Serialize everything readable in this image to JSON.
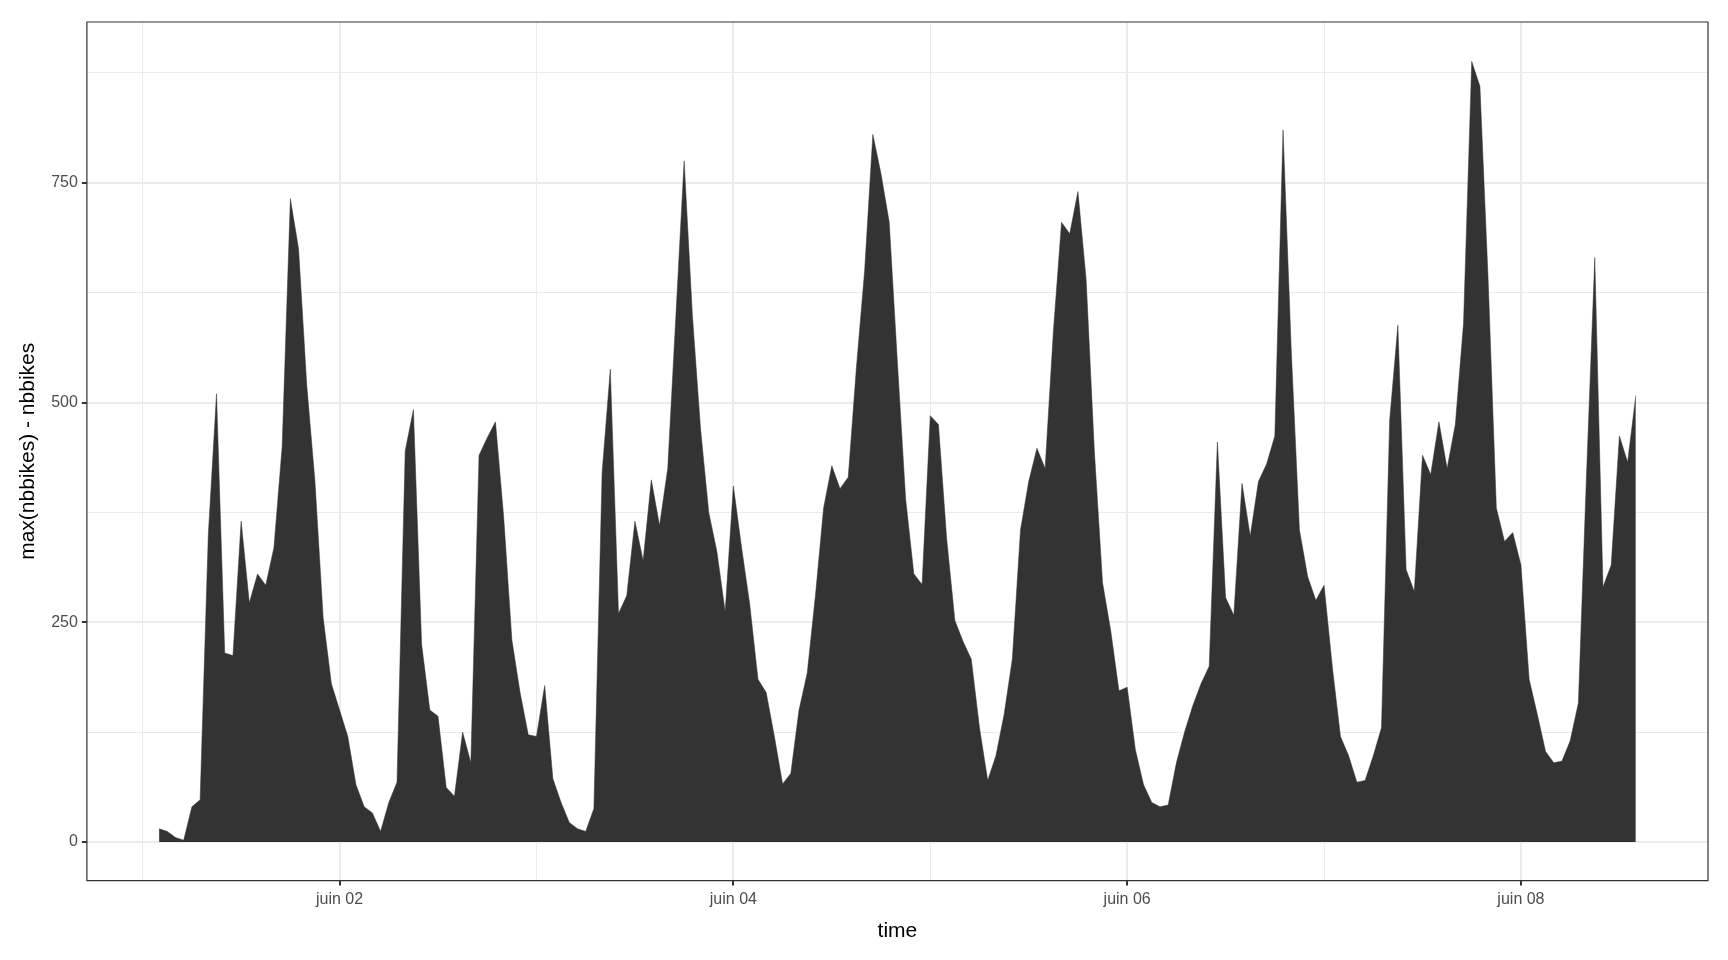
{
  "chart_data": {
    "type": "area",
    "xlabel": "time",
    "ylabel": "max(nbbikes) - nbbikes",
    "xlim": [
      "--05-31T17:12",
      "--06-08T22:48"
    ],
    "xticks": [
      {
        "value": "--06-01",
        "label": null
      },
      {
        "value": "--06-02",
        "label": "juin 02"
      },
      {
        "value": "--06-03",
        "label": null
      },
      {
        "value": "--06-04",
        "label": "juin 04"
      },
      {
        "value": "--06-05",
        "label": null
      },
      {
        "value": "--06-06",
        "label": "juin 06"
      },
      {
        "value": "--06-07",
        "label": null
      },
      {
        "value": "--06-08",
        "label": "juin 08"
      }
    ],
    "ylim": [
      -44,
      933
    ],
    "yticks": [
      0,
      {
        "value": 125,
        "label": null
      },
      250,
      {
        "value": 375,
        "label": null
      },
      500,
      {
        "value": 625,
        "label": null
      },
      750,
      {
        "value": 875,
        "label": null
      }
    ],
    "grid": true,
    "legend": false,
    "series": [
      {
        "color": "#333333",
        "x": [
          "--06-01T02:00",
          "--06-01T03:00",
          "--06-01T04:00",
          "--06-01T05:00",
          "--06-01T06:00",
          "--06-01T07:00",
          "--06-01T08:00",
          "--06-01T09:00",
          "--06-01T10:00",
          "--06-01T11:00",
          "--06-01T12:00",
          "--06-01T13:00",
          "--06-01T14:00",
          "--06-01T15:00",
          "--06-01T16:00",
          "--06-01T17:00",
          "--06-01T18:00",
          "--06-01T19:00",
          "--06-01T20:00",
          "--06-01T21:00",
          "--06-01T22:00",
          "--06-01T23:00",
          "--06-02T00:00",
          "--06-02T01:00",
          "--06-02T02:00",
          "--06-02T03:00",
          "--06-02T04:00",
          "--06-02T05:00",
          "--06-02T06:00",
          "--06-02T07:00",
          "--06-02T08:00",
          "--06-02T09:00",
          "--06-02T10:00",
          "--06-02T11:00",
          "--06-02T12:00",
          "--06-02T13:00",
          "--06-02T14:00",
          "--06-02T15:00",
          "--06-02T16:00",
          "--06-02T17:00",
          "--06-02T18:00",
          "--06-02T19:00",
          "--06-02T20:00",
          "--06-02T21:00",
          "--06-02T22:00",
          "--06-02T23:00",
          "--06-03T00:00",
          "--06-03T01:00",
          "--06-03T02:00",
          "--06-03T03:00",
          "--06-03T04:00",
          "--06-03T05:00",
          "--06-03T06:00",
          "--06-03T07:00",
          "--06-03T08:00",
          "--06-03T09:00",
          "--06-03T10:00",
          "--06-03T11:00",
          "--06-03T12:00",
          "--06-03T13:00",
          "--06-03T14:00",
          "--06-03T15:00",
          "--06-03T16:00",
          "--06-03T17:00",
          "--06-03T18:00",
          "--06-03T19:00",
          "--06-03T20:00",
          "--06-03T21:00",
          "--06-03T22:00",
          "--06-03T23:00",
          "--06-04T00:00",
          "--06-04T01:00",
          "--06-04T02:00",
          "--06-04T03:00",
          "--06-04T04:00",
          "--06-04T05:00",
          "--06-04T06:00",
          "--06-04T07:00",
          "--06-04T08:00",
          "--06-04T09:00",
          "--06-04T10:00",
          "--06-04T11:00",
          "--06-04T12:00",
          "--06-04T13:00",
          "--06-04T14:00",
          "--06-04T15:00",
          "--06-04T16:00",
          "--06-04T17:00",
          "--06-04T18:00",
          "--06-04T19:00",
          "--06-04T20:00",
          "--06-04T21:00",
          "--06-04T22:00",
          "--06-04T23:00",
          "--06-05T00:00",
          "--06-05T01:00",
          "--06-05T02:00",
          "--06-05T03:00",
          "--06-05T04:00",
          "--06-05T05:00",
          "--06-05T06:00",
          "--06-05T07:00",
          "--06-05T08:00",
          "--06-05T09:00",
          "--06-05T10:00",
          "--06-05T11:00",
          "--06-05T12:00",
          "--06-05T13:00",
          "--06-05T14:00",
          "--06-05T15:00",
          "--06-05T16:00",
          "--06-05T17:00",
          "--06-05T18:00",
          "--06-05T19:00",
          "--06-05T20:00",
          "--06-05T21:00",
          "--06-05T22:00",
          "--06-05T23:00",
          "--06-06T00:00",
          "--06-06T01:00",
          "--06-06T02:00",
          "--06-06T03:00",
          "--06-06T04:00",
          "--06-06T05:00",
          "--06-06T06:00",
          "--06-06T07:00",
          "--06-06T08:00",
          "--06-06T09:00",
          "--06-06T10:00",
          "--06-06T11:00",
          "--06-06T12:00",
          "--06-06T13:00",
          "--06-06T14:00",
          "--06-06T15:00",
          "--06-06T16:00",
          "--06-06T17:00",
          "--06-06T18:00",
          "--06-06T19:00",
          "--06-06T20:00",
          "--06-06T21:00",
          "--06-06T22:00",
          "--06-06T23:00",
          "--06-07T00:00",
          "--06-07T01:00",
          "--06-07T02:00",
          "--06-07T03:00",
          "--06-07T04:00",
          "--06-07T05:00",
          "--06-07T06:00",
          "--06-07T07:00",
          "--06-07T08:00",
          "--06-07T09:00",
          "--06-07T10:00",
          "--06-07T11:00",
          "--06-07T12:00",
          "--06-07T13:00",
          "--06-07T14:00",
          "--06-07T15:00",
          "--06-07T16:00",
          "--06-07T17:00",
          "--06-07T18:00",
          "--06-07T19:00",
          "--06-07T20:00",
          "--06-07T21:00",
          "--06-07T22:00",
          "--06-07T23:00",
          "--06-08T00:00",
          "--06-08T01:00",
          "--06-08T02:00",
          "--06-08T03:00",
          "--06-08T04:00",
          "--06-08T05:00",
          "--06-08T06:00",
          "--06-08T07:00",
          "--06-08T08:00",
          "--06-08T09:00",
          "--06-08T10:00",
          "--06-08T11:00",
          "--06-08T12:00",
          "--06-08T13:00",
          "--06-08T14:00"
        ],
        "values": [
          15,
          12,
          5,
          2,
          40,
          48,
          350,
          510,
          215,
          212,
          365,
          272,
          305,
          292,
          335,
          450,
          732,
          675,
          520,
          410,
          255,
          180,
          150,
          120,
          65,
          40,
          33,
          12,
          45,
          68,
          445,
          492,
          225,
          150,
          143,
          62,
          52,
          125,
          90,
          440,
          460,
          478,
          370,
          230,
          170,
          122,
          120,
          178,
          72,
          45,
          22,
          15,
          12,
          38,
          420,
          538,
          260,
          280,
          365,
          320,
          412,
          360,
          425,
          600,
          775,
          600,
          470,
          375,
          330,
          262,
          405,
          335,
          270,
          185,
          170,
          120,
          66,
          78,
          150,
          192,
          280,
          380,
          428,
          402,
          415,
          540,
          650,
          805,
          760,
          705,
          545,
          390,
          305,
          293,
          485,
          475,
          345,
          252,
          228,
          208,
          130,
          70,
          98,
          145,
          208,
          355,
          410,
          448,
          425,
          580,
          705,
          692,
          740,
          640,
          445,
          295,
          240,
          172,
          176,
          105,
          65,
          45,
          40,
          42,
          90,
          125,
          155,
          180,
          200,
          455,
          278,
          258,
          408,
          348,
          410,
          430,
          462,
          810,
          560,
          355,
          302,
          275,
          292,
          200,
          120,
          98,
          68,
          70,
          98,
          130,
          480,
          588,
          310,
          285,
          440,
          418,
          478,
          425,
          475,
          590,
          888,
          860,
          640,
          380,
          342,
          352,
          315,
          185,
          145,
          103,
          90,
          92,
          115,
          158,
          420,
          665,
          290,
          315,
          462,
          432,
          508
        ]
      }
    ]
  }
}
